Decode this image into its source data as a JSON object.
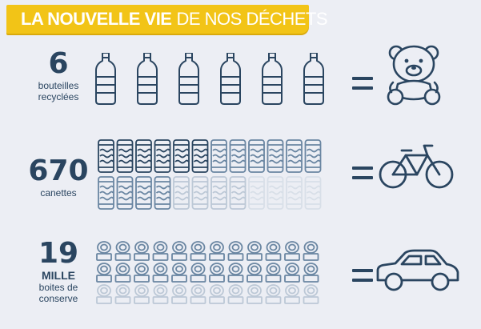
{
  "header": {
    "title_bold": "LA NOUVELLE VIE",
    "title_rest": "DE NOS DÉCHETS"
  },
  "rows": [
    {
      "number": "6",
      "lines": [
        "bouteilles",
        "recyclées"
      ],
      "result_icon": "teddy-bear-icon",
      "unit_icon": "plastic-bottle-icon"
    },
    {
      "number": "670",
      "lines": [
        "canettes"
      ],
      "result_icon": "bicycle-icon",
      "unit_icon": "can-icon"
    },
    {
      "number": "19",
      "extra": "MILLE",
      "lines": [
        "boites de",
        "conserve"
      ],
      "result_icon": "car-icon",
      "unit_icon": "tin-can-icon"
    }
  ],
  "colors": {
    "accent": "#f2c417",
    "ink": "#2a4560",
    "mid": "#6a86a2",
    "light": "#bcc8d6",
    "pale": "#d8dfe8",
    "background": "#eceef4"
  }
}
